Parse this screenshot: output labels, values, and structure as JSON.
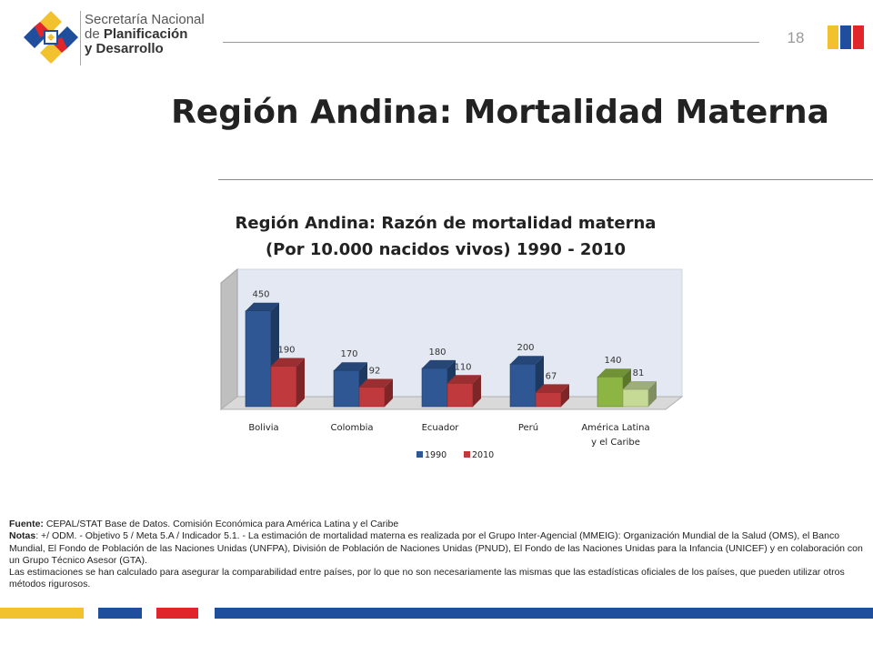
{
  "header": {
    "org_line1": "Secretaría Nacional",
    "org_line2_prefix": "de ",
    "org_line2_bold": "Planificación",
    "org_line3": "y Desarrollo",
    "page_number": "18"
  },
  "slide_title": "Región Andina: Mortalidad Materna",
  "chart_data": {
    "type": "bar",
    "title_line1": "Región Andina: Razón de mortalidad materna",
    "title_line2": "(Por 10.000 nacidos vivos)  1990 - 2010",
    "categories": [
      "Bolivia",
      "Colombia",
      "Ecuador",
      "Perú",
      "América Latina y el Caribe"
    ],
    "category_lines": [
      [
        "Bolivia"
      ],
      [
        "Colombia"
      ],
      [
        "Ecuador"
      ],
      [
        "Perú"
      ],
      [
        "América Latina",
        "y el Caribe"
      ]
    ],
    "series": [
      {
        "name": "1990",
        "values": [
          450,
          170,
          180,
          200,
          140
        ],
        "color": "#2E5793"
      },
      {
        "name": "2010",
        "values": [
          190,
          92,
          110,
          67,
          81
        ],
        "color": "#C0393C"
      }
    ],
    "highlight_colors": {
      "1990": "#8DB543",
      "2010": "#C6DA96"
    },
    "ylim": [
      0,
      500
    ],
    "grid": false,
    "legend_position": "bottom"
  },
  "notes": {
    "source_label": "Fuente:",
    "source_text": " CEPAL/STAT  Base de Datos. Comisión Económica para América Latina y el Caribe",
    "notes_label": "Notas",
    "notes_text": ": +/ ODM. - Objetivo 5 / Meta 5.A / Indicador 5.1. - La estimación de mortalidad materna es realizada por el Grupo Inter-Agencial (MMEIG): Organización Mundial de la Salud (OMS), el Banco Mundial, El Fondo de Población de las Naciones Unidas (UNFPA), División de Población de Naciones Unidas (PNUD), El Fondo de las Naciones Unidas para la Infancia (UNICEF) y en colaboración con un Grupo Técnico Asesor (GTA).",
    "estimates_text": "Las estimaciones se han calculado para asegurar la comparabilidad entre países, por lo que no son necesariamente las mismas que las estadísticas oficiales de los países, que pueden utilizar otros métodos rigurosos."
  },
  "colors": {
    "yellow": "#F2C12E",
    "blue": "#1F4E9C",
    "red": "#E0262A"
  }
}
